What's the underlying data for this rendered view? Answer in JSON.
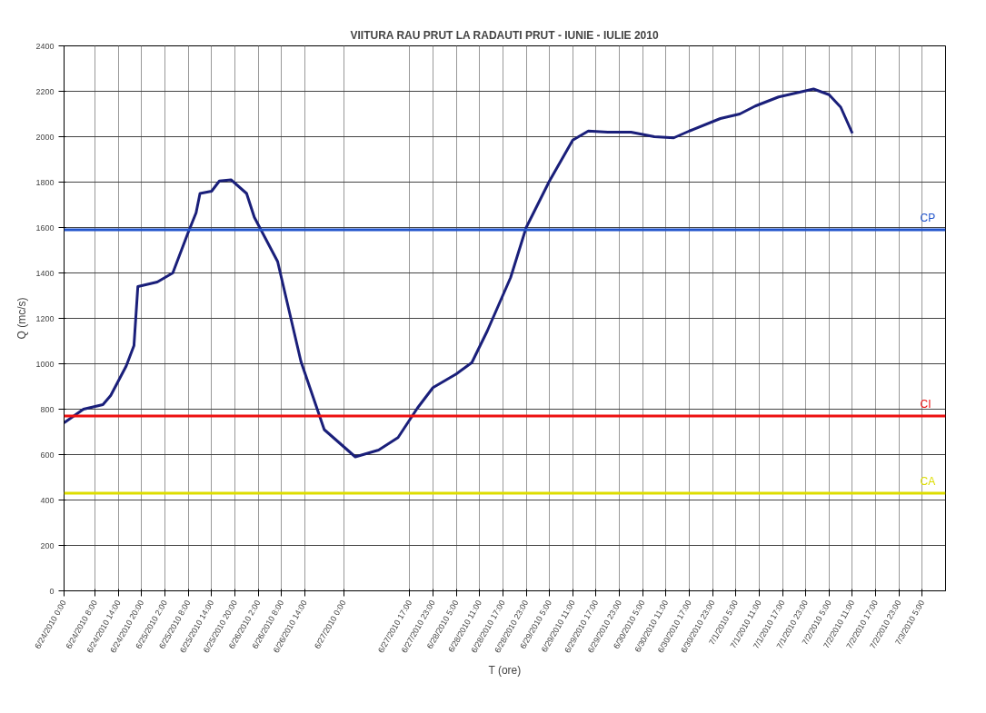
{
  "chart_data": {
    "type": "line",
    "title": "VIITURA RAU PRUT LA RADAUTI PRUT - IUNIE - IULIE 2010",
    "xlabel": "T (ore)",
    "ylabel": "Q (mc/s)",
    "x": [
      "2010-06-24T00:00",
      "2010-06-24T05:00",
      "2010-06-24T10:00",
      "2010-06-24T12:00",
      "2010-06-24T14:00",
      "2010-06-24T16:00",
      "2010-06-24T18:00",
      "2010-06-24T19:00",
      "2010-06-25T00:00",
      "2010-06-25T04:00",
      "2010-06-25T08:00",
      "2010-06-25T10:00",
      "2010-06-25T11:00",
      "2010-06-25T14:00",
      "2010-06-25T16:00",
      "2010-06-25T19:00",
      "2010-06-25T23:00",
      "2010-06-26T01:00",
      "2010-06-26T07:00",
      "2010-06-26T10:00",
      "2010-06-26T13:00",
      "2010-06-26T19:00",
      "2010-06-27T03:00",
      "2010-06-27T09:00",
      "2010-06-27T14:00",
      "2010-06-27T19:00",
      "2010-06-27T23:00",
      "2010-06-28T02:00",
      "2010-06-28T05:00",
      "2010-06-28T09:00",
      "2010-06-28T13:00",
      "2010-06-28T19:00",
      "2010-06-28T23:00",
      "2010-06-29T05:00",
      "2010-06-29T11:00",
      "2010-06-29T15:00",
      "2010-06-29T20:00",
      "2010-06-30T02:00",
      "2010-06-30T08:00",
      "2010-06-30T13:00",
      "2010-06-30T17:00",
      "2010-07-01T01:00",
      "2010-07-01T06:00",
      "2010-07-01T10:00",
      "2010-07-01T16:00",
      "2010-07-02T01:00",
      "2010-07-02T05:00",
      "2010-07-02T08:00",
      "2010-07-02T11:00"
    ],
    "series": [
      {
        "color": "#1a1f7a",
        "values": [
          740,
          800,
          820,
          860,
          925,
          990,
          1080,
          1340,
          1360,
          1400,
          1580,
          1665,
          1750,
          1760,
          1805,
          1810,
          1750,
          1645,
          1450,
          1230,
          1010,
          710,
          590,
          620,
          675,
          805,
          895,
          925,
          955,
          1005,
          1145,
          1380,
          1600,
          1805,
          1985,
          2025,
          2020,
          2020,
          2000,
          1995,
          2025,
          2080,
          2100,
          2135,
          2175,
          2210,
          2185,
          2130,
          2015
        ]
      }
    ],
    "xlim": [
      "2010-06-24T00:00",
      "2010-07-03T11:00"
    ],
    "xticks": [
      {
        "value": "2010-06-24T00:00",
        "label": "6/24/2010 0:00"
      },
      {
        "value": "2010-06-24T08:00",
        "label": "6/24/2010 8:00"
      },
      {
        "value": "2010-06-24T14:00",
        "label": "6/24/2010 14:00"
      },
      {
        "value": "2010-06-24T20:00",
        "label": "6/24/2010 20:00"
      },
      {
        "value": "2010-06-25T02:00",
        "label": "6/25/2010 2:00"
      },
      {
        "value": "2010-06-25T08:00",
        "label": "6/25/2010 8:00"
      },
      {
        "value": "2010-06-25T14:00",
        "label": "6/25/2010 14:00"
      },
      {
        "value": "2010-06-25T20:00",
        "label": "6/25/2010 20:00"
      },
      {
        "value": "2010-06-26T02:00",
        "label": "6/26/2010 2:00"
      },
      {
        "value": "2010-06-26T08:00",
        "label": "6/26/2010 8:00"
      },
      {
        "value": "2010-06-26T14:00",
        "label": "6/26/2010 14:00"
      },
      {
        "value": "2010-06-27T00:00",
        "label": "6/27/2010 0:00"
      },
      {
        "value": "2010-06-27T17:00",
        "label": "6/27/2010 17:00"
      },
      {
        "value": "2010-06-27T23:00",
        "label": "6/27/2010 23:00"
      },
      {
        "value": "2010-06-28T05:00",
        "label": "6/28/2010 5:00"
      },
      {
        "value": "2010-06-28T11:00",
        "label": "6/28/2010 11:00"
      },
      {
        "value": "2010-06-28T17:00",
        "label": "6/28/2010 17:00"
      },
      {
        "value": "2010-06-28T23:00",
        "label": "6/28/2010 23:00"
      },
      {
        "value": "2010-06-29T05:00",
        "label": "6/29/2010 5:00"
      },
      {
        "value": "2010-06-29T11:00",
        "label": "6/29/2010 11:00"
      },
      {
        "value": "2010-06-29T17:00",
        "label": "6/29/2010 17:00"
      },
      {
        "value": "2010-06-29T23:00",
        "label": "6/29/2010 23:00"
      },
      {
        "value": "2010-06-30T05:00",
        "label": "6/30/2010 5:00"
      },
      {
        "value": "2010-06-30T11:00",
        "label": "6/30/2010 11:00"
      },
      {
        "value": "2010-06-30T17:00",
        "label": "6/30/2010 17:00"
      },
      {
        "value": "2010-06-30T23:00",
        "label": "6/30/2010 23:00"
      },
      {
        "value": "2010-07-01T05:00",
        "label": "7/1/2010 5:00"
      },
      {
        "value": "2010-07-01T11:00",
        "label": "7/1/2010 11:00"
      },
      {
        "value": "2010-07-01T17:00",
        "label": "7/1/2010 17:00"
      },
      {
        "value": "2010-07-01T23:00",
        "label": "7/1/2010 23:00"
      },
      {
        "value": "2010-07-02T05:00",
        "label": "7/2/2010 5:00"
      },
      {
        "value": "2010-07-02T11:00",
        "label": "7/2/2010 11:00"
      },
      {
        "value": "2010-07-02T17:00",
        "label": "7/2/2010 17:00"
      },
      {
        "value": "2010-07-02T23:00",
        "label": "7/2/2010 23:00"
      },
      {
        "value": "2010-07-03T05:00",
        "label": "7/3/2010 5:00"
      }
    ],
    "ylim": [
      0,
      2400
    ],
    "yticks": [
      0,
      200,
      400,
      600,
      800,
      1000,
      1200,
      1400,
      1600,
      1800,
      2000,
      2200,
      2400
    ],
    "grid": true,
    "marker": "none",
    "line_style": "solid",
    "ref_lines": [
      {
        "axis": "y",
        "value": 1590,
        "label": "CP",
        "color": "#2255cc"
      },
      {
        "axis": "y",
        "value": 770,
        "label": "CI",
        "color": "#ee1111"
      },
      {
        "axis": "y",
        "value": 430,
        "label": "CA",
        "color": "#dddd00"
      }
    ]
  }
}
